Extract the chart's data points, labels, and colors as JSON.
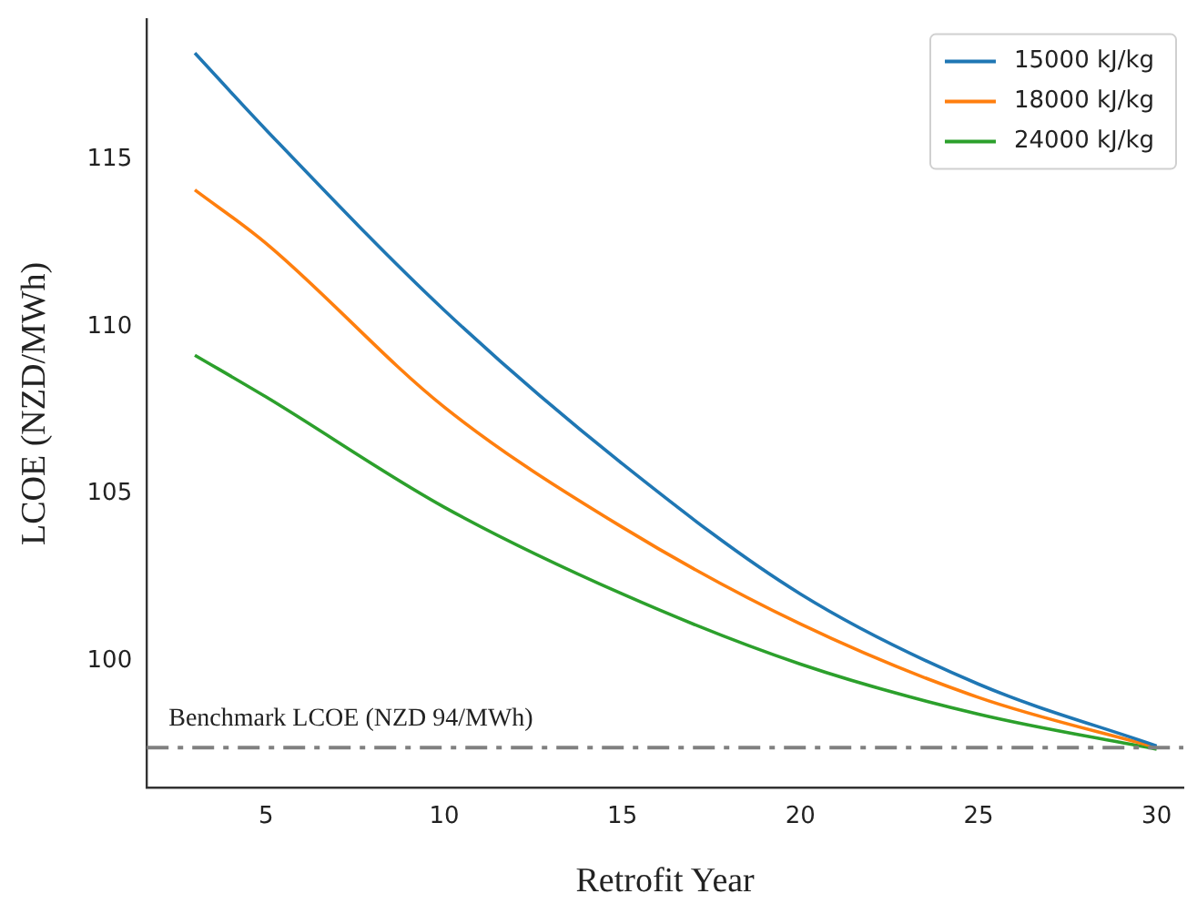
{
  "chart_data": {
    "type": "line",
    "xlabel": "Retrofit Year",
    "ylabel": "LCOE (NZD/MWh)",
    "x": [
      3,
      5,
      10,
      15,
      20,
      25,
      30
    ],
    "series": [
      {
        "name": "15000 kJ/kg",
        "color": "#1f77b4",
        "values": [
          118.2,
          115.9,
          110.5,
          105.9,
          102.0,
          99.3,
          97.45
        ]
      },
      {
        "name": "18000 kJ/kg",
        "color": "#ff7f0e",
        "values": [
          114.1,
          112.5,
          107.6,
          104.0,
          101.1,
          98.9,
          97.4
        ]
      },
      {
        "name": "24000 kJ/kg",
        "color": "#2ca02c",
        "values": [
          109.15,
          107.9,
          104.6,
          102.0,
          99.9,
          98.4,
          97.35
        ]
      }
    ],
    "xlim": [
      1.65,
      30.75
    ],
    "xticks": [
      5,
      10,
      15,
      20,
      25,
      30
    ],
    "ylim": [
      96.2,
      119.2
    ],
    "yticks": [
      100,
      105,
      110,
      115
    ],
    "ref_lines": [
      {
        "axis": "y",
        "value": 97.4,
        "label": "Benchmark LCOE (NZD 94/MWh)",
        "color": "#808080",
        "line_style": "dashed"
      }
    ],
    "legend": "top right",
    "grid": false,
    "marker": "none",
    "line_style": "solid"
  }
}
